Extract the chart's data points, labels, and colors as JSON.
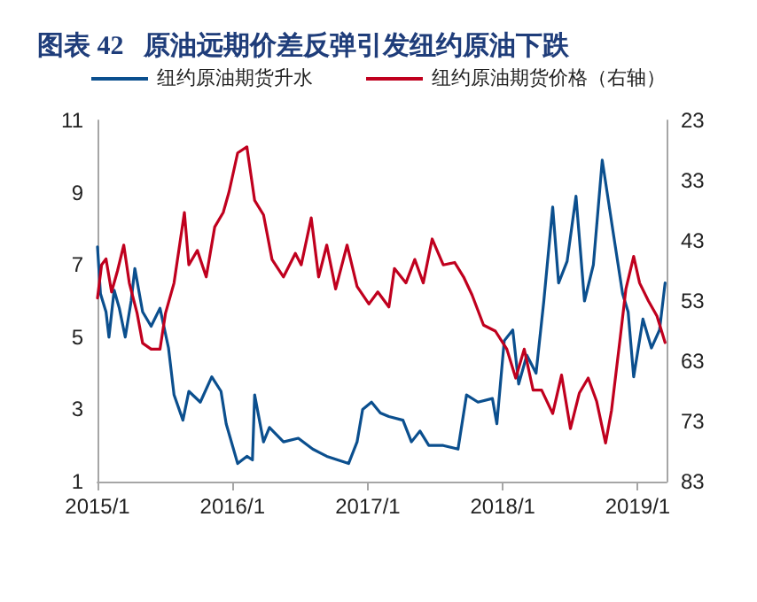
{
  "chart_data": {
    "type": "line",
    "title": "图表 42   原油远期价差反弹引发纽约原油下跌",
    "xlim": [
      "2015-01-01",
      "2019-03-20"
    ],
    "xticks": [
      {
        "value": "2015-01-01",
        "label": "2015/1"
      },
      {
        "value": "2016-01-01",
        "label": "2016/1"
      },
      {
        "value": "2017-01-01",
        "label": "2017/1"
      },
      {
        "value": "2018-01-01",
        "label": "2018/1"
      },
      {
        "value": "2019-01-01",
        "label": "2019/1"
      }
    ],
    "ylim": [
      1,
      11
    ],
    "yticks": [
      1,
      3,
      5,
      7,
      9,
      11
    ],
    "y2lim": [
      83,
      23
    ],
    "y2ticks": [
      23,
      33,
      43,
      53,
      63,
      73,
      83
    ],
    "grid": false,
    "legend": "top",
    "marker": "none",
    "line_style": "solid",
    "series": [
      {
        "name": "纽约原油期货升水",
        "color": "#0b4f8e",
        "x": [
          "2015-01-01",
          "2015-01-09",
          "2015-01-24",
          "2015-02-01",
          "2015-02-15",
          "2015-03-01",
          "2015-03-17",
          "2015-04-02",
          "2015-04-12",
          "2015-05-03",
          "2015-05-26",
          "2015-06-19",
          "2015-07-12",
          "2015-07-27",
          "2015-08-20",
          "2015-09-05",
          "2015-10-06",
          "2015-11-06",
          "2015-12-01",
          "2015-12-15",
          "2016-01-15",
          "2016-02-09",
          "2016-02-24",
          "2016-03-01",
          "2016-03-25",
          "2016-04-10",
          "2016-05-18",
          "2016-06-27",
          "2016-08-05",
          "2016-09-12",
          "2016-11-10",
          "2016-12-03",
          "2016-12-18",
          "2017-01-11",
          "2017-02-04",
          "2017-02-27",
          "2017-04-06",
          "2017-04-29",
          "2017-05-22",
          "2017-06-15",
          "2017-07-24",
          "2017-09-02",
          "2017-09-25",
          "2017-10-26",
          "2017-12-04",
          "2017-12-16",
          "2018-01-05",
          "2018-01-28",
          "2018-02-13",
          "2018-03-07",
          "2018-04-01",
          "2018-04-22",
          "2018-05-16",
          "2018-06-01",
          "2018-06-24",
          "2018-07-18",
          "2018-08-10",
          "2018-09-03",
          "2018-09-27",
          "2018-10-28",
          "2018-11-21",
          "2018-12-06",
          "2018-12-21",
          "2019-01-15",
          "2019-02-07",
          "2019-03-01",
          "2019-03-16"
        ],
        "values": [
          7.5,
          6.2,
          5.7,
          5.0,
          6.3,
          5.8,
          5.0,
          6.0,
          6.9,
          5.7,
          5.3,
          5.8,
          4.7,
          3.4,
          2.7,
          3.5,
          3.2,
          3.9,
          3.5,
          2.6,
          1.5,
          1.7,
          1.6,
          3.4,
          2.1,
          2.5,
          2.1,
          2.2,
          1.9,
          1.7,
          1.5,
          2.1,
          3.0,
          3.2,
          2.9,
          2.8,
          2.7,
          2.1,
          2.4,
          2.0,
          2.0,
          1.9,
          3.4,
          3.2,
          3.3,
          2.6,
          4.9,
          5.2,
          3.7,
          4.5,
          4.0,
          6.0,
          8.6,
          6.5,
          7.1,
          8.9,
          6.0,
          7.0,
          9.9,
          7.8,
          6.2,
          5.7,
          3.9,
          5.5,
          4.7,
          5.2,
          6.5
        ]
      },
      {
        "name": "纽约原油期货价格（右轴）",
        "color": "#c0001e",
        "axis": "y2",
        "x": [
          "2015-01-01",
          "2015-01-12",
          "2015-01-24",
          "2015-02-08",
          "2015-02-24",
          "2015-03-13",
          "2015-03-28",
          "2015-04-18",
          "2015-05-03",
          "2015-05-26",
          "2015-06-19",
          "2015-07-04",
          "2015-07-27",
          "2015-08-24",
          "2015-09-05",
          "2015-09-28",
          "2015-10-22",
          "2015-11-14",
          "2015-12-07",
          "2015-12-23",
          "2016-01-15",
          "2016-02-09",
          "2016-03-01",
          "2016-03-25",
          "2016-04-17",
          "2016-05-18",
          "2016-06-19",
          "2016-07-05",
          "2016-08-01",
          "2016-08-21",
          "2016-09-12",
          "2016-10-06",
          "2016-11-06",
          "2016-12-03",
          "2017-01-04",
          "2017-01-28",
          "2017-02-27",
          "2017-03-14",
          "2017-04-14",
          "2017-05-08",
          "2017-05-31",
          "2017-06-24",
          "2017-07-24",
          "2017-08-24",
          "2017-09-17",
          "2017-10-10",
          "2017-11-10",
          "2017-12-12",
          "2018-01-12",
          "2018-02-05",
          "2018-02-28",
          "2018-03-24",
          "2018-04-16",
          "2018-05-16",
          "2018-06-09",
          "2018-07-03",
          "2018-07-27",
          "2018-08-20",
          "2018-09-12",
          "2018-10-06",
          "2018-10-22",
          "2018-11-15",
          "2018-11-30",
          "2018-12-21",
          "2019-01-06",
          "2019-01-30",
          "2019-02-22",
          "2019-03-16"
        ],
        "values": [
          52.5,
          47,
          46,
          51.5,
          48,
          43.7,
          50,
          55,
          60,
          61,
          61,
          55,
          50,
          38.3,
          47,
          44.6,
          49,
          40.7,
          38.3,
          34.8,
          28.4,
          27.4,
          36.3,
          38.7,
          46.1,
          49,
          45.1,
          47,
          39.2,
          49,
          43.7,
          51,
          43.7,
          50.6,
          53.5,
          51.5,
          54,
          47.6,
          50,
          46.1,
          50,
          42.7,
          47,
          46.6,
          49,
          52,
          57,
          58,
          61,
          65.8,
          61,
          67.8,
          67.8,
          71.7,
          65.3,
          74.2,
          68.3,
          65.8,
          69.7,
          76.6,
          71.2,
          58.9,
          51,
          45.6,
          50,
          53,
          55.5,
          59.9
        ]
      }
    ]
  }
}
